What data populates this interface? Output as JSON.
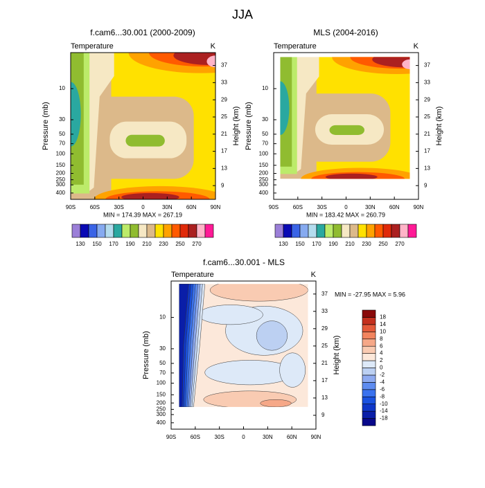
{
  "title": "JJA",
  "chart_data": [
    {
      "type": "contour",
      "title": "f.cam6...30.001 (2000-2009)",
      "field_label": "Temperature",
      "units": "K",
      "ylabel": "Pressure (mb)",
      "y2label": "Height (km)",
      "xlim": [
        -90,
        90
      ],
      "xticks": [
        {
          "value": -90,
          "label": "90S"
        },
        {
          "value": -60,
          "label": "60S"
        },
        {
          "value": -30,
          "label": "30S"
        },
        0,
        {
          "value": 30,
          "label": "30N"
        },
        {
          "value": 60,
          "label": "60N"
        },
        {
          "value": 90,
          "label": "90N"
        }
      ],
      "ylim": [
        500,
        2.8
      ],
      "yscale": "log",
      "yticks": [
        10,
        30,
        50,
        70,
        100,
        150,
        200,
        250,
        300,
        400
      ],
      "y2lim": [
        5.8,
        40
      ],
      "y2ticks": [
        9,
        13,
        17,
        21,
        25,
        29,
        33,
        37
      ],
      "stats": "MIN = 174.39   MAX = 267.19",
      "colorbar": {
        "orientation": "horizontal",
        "levels": [
          130,
          140,
          150,
          160,
          170,
          180,
          190,
          200,
          210,
          220,
          230,
          240,
          250,
          260,
          270,
          280
        ],
        "ticks": [
          130,
          150,
          170,
          190,
          210,
          230,
          250,
          270
        ],
        "colors": [
          "#9b7fd8",
          "#0a0ab4",
          "#3a64e6",
          "#86aaf0",
          "#b4dcee",
          "#2aa8a0",
          "#bceb6a",
          "#90bc30",
          "#f6e8c4",
          "#dcb98a",
          "#ffe100",
          "#ffa200",
          "#ff5a00",
          "#e02a0a",
          "#ab2020",
          "#ffb4c8",
          "#ff1a96"
        ]
      }
    },
    {
      "type": "contour",
      "title": "MLS (2004-2016)",
      "field_label": "Temperature",
      "units": "K",
      "ylabel": "Pressure (mb)",
      "y2label": "Height (km)",
      "xlim": [
        -90,
        90
      ],
      "xticks": [
        {
          "value": -90,
          "label": "90S"
        },
        {
          "value": -60,
          "label": "60S"
        },
        {
          "value": -30,
          "label": "30S"
        },
        0,
        {
          "value": 30,
          "label": "30N"
        },
        {
          "value": 60,
          "label": "60N"
        },
        {
          "value": 90,
          "label": "90N"
        }
      ],
      "ylim": [
        500,
        2.8
      ],
      "yscale": "log",
      "yticks": [
        10,
        30,
        50,
        70,
        100,
        150,
        200,
        250,
        300,
        400
      ],
      "y2lim": [
        5.8,
        40
      ],
      "y2ticks": [
        9,
        13,
        17,
        21,
        25,
        29,
        33,
        37
      ],
      "stats": "MIN = 183.42   MAX = 260.79",
      "colorbar": {
        "orientation": "horizontal",
        "levels": [
          130,
          140,
          150,
          160,
          170,
          180,
          190,
          200,
          210,
          220,
          230,
          240,
          250,
          260,
          270,
          280
        ],
        "ticks": [
          130,
          150,
          170,
          190,
          210,
          230,
          250,
          270
        ],
        "colors": [
          "#9b7fd8",
          "#0a0ab4",
          "#3a64e6",
          "#86aaf0",
          "#b4dcee",
          "#2aa8a0",
          "#bceb6a",
          "#90bc30",
          "#f6e8c4",
          "#dcb98a",
          "#ffe100",
          "#ffa200",
          "#ff5a00",
          "#e02a0a",
          "#ab2020",
          "#ffb4c8",
          "#ff1a96"
        ]
      }
    },
    {
      "type": "contour-diff",
      "title": "f.cam6...30.001 - MLS",
      "field_label": "Temperature",
      "units": "K",
      "ylabel": "Pressure (mb)",
      "y2label": "Height (km)",
      "xlim": [
        -90,
        90
      ],
      "xticks": [
        {
          "value": -90,
          "label": "90S"
        },
        {
          "value": -60,
          "label": "60S"
        },
        {
          "value": -30,
          "label": "30S"
        },
        0,
        {
          "value": 30,
          "label": "30N"
        },
        {
          "value": 60,
          "label": "60N"
        },
        {
          "value": 90,
          "label": "90N"
        }
      ],
      "ylim": [
        500,
        2.8
      ],
      "yscale": "log",
      "yticks": [
        10,
        30,
        50,
        70,
        100,
        150,
        200,
        250,
        300,
        400
      ],
      "y2lim": [
        5.8,
        40
      ],
      "y2ticks": [
        9,
        13,
        17,
        21,
        25,
        29,
        33,
        37
      ],
      "stats": "MIN = -27.95  MAX =   5.96",
      "colorbar": {
        "orientation": "vertical",
        "levels": [
          -18,
          -14,
          -10,
          -8,
          -6,
          -4,
          -2,
          0,
          2,
          4,
          6,
          8,
          10,
          14,
          18
        ],
        "ticks": [
          -18,
          -14,
          -10,
          -8,
          -6,
          -4,
          -2,
          0,
          2,
          4,
          6,
          8,
          10,
          14,
          18
        ],
        "colors": [
          "#08088a",
          "#0a1ea8",
          "#0e36c8",
          "#1a52e0",
          "#3a72ee",
          "#5e8cf0",
          "#8eaaf0",
          "#bcd0f2",
          "#dde9f8",
          "#fce8da",
          "#f9cbb2",
          "#f6a888",
          "#f2845e",
          "#e45a3a",
          "#c4301e",
          "#8a0a0a"
        ]
      }
    }
  ]
}
